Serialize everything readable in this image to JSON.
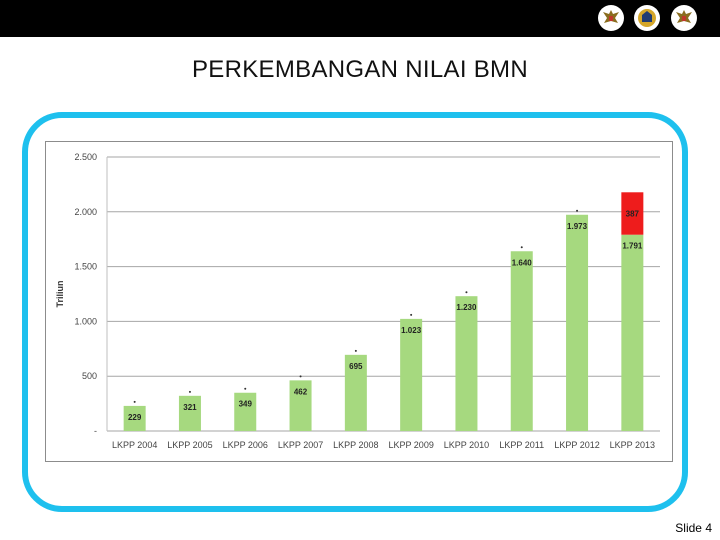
{
  "header": {
    "emblems": [
      "garuda-emblem-icon",
      "ministry-seal-icon",
      "garuda-emblem-icon"
    ]
  },
  "title": "PERKEMBANGAN NILAI BMN",
  "footer": {
    "slide_label": "Slide 4"
  },
  "colors": {
    "top_bar": "#000000",
    "frame_border": "#1ec0ee",
    "bar_green": "#a6d97f",
    "bar_red": "#ee1c1c",
    "gridline": "#a6a6a6"
  },
  "chart_data": {
    "type": "bar",
    "stacked": true,
    "categories": [
      "LKPP 2004",
      "LKPP 2005",
      "LKPP 2006",
      "LKPP 2007",
      "LKPP 2008",
      "LKPP 2009",
      "LKPP 2010",
      "LKPP 2011",
      "LKPP 2012",
      "LKPP 2013"
    ],
    "series": [
      {
        "color": "#a6d97f",
        "values": [
          229,
          321,
          349,
          462,
          695,
          1023,
          1230,
          1640,
          1973,
          1791
        ],
        "labels": [
          "229",
          "321",
          "349",
          "462",
          "695",
          "1.023",
          "1.230",
          "1.640",
          "1.973",
          "1.791"
        ]
      },
      {
        "color": "#ee1c1c",
        "values": [
          null,
          null,
          null,
          null,
          null,
          null,
          null,
          null,
          null,
          387
        ],
        "labels": [
          "",
          "",
          "",
          "",
          "",
          "",
          "",
          "",
          "",
          "387"
        ]
      }
    ],
    "ylabel": "Triliun",
    "ylim": [
      0,
      2500
    ],
    "yticks": [
      0,
      500,
      1000,
      1500,
      2000,
      2500
    ],
    "ytick_labels": [
      "-",
      "500",
      "1.000",
      "1.500",
      "2.000",
      "2.500"
    ],
    "grid": true,
    "legend": "none"
  }
}
